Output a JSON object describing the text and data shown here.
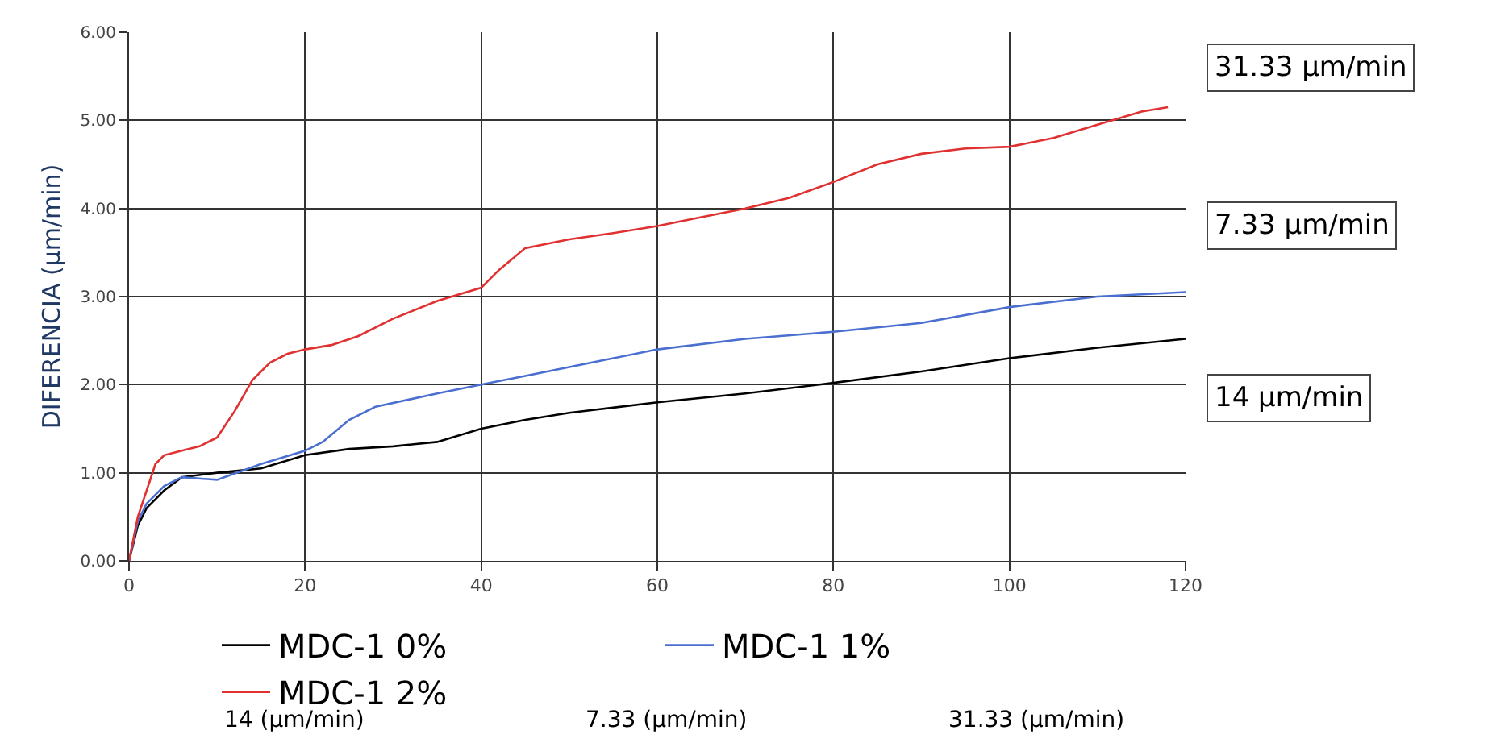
{
  "chart_data": {
    "type": "line",
    "ylabel": "DIFERENCIA (µm/min)",
    "xlim": [
      0,
      120
    ],
    "xticks": [
      0,
      20,
      40,
      60,
      80,
      100,
      120
    ],
    "ylim": [
      0,
      6
    ],
    "yticks": [
      {
        "value": 0,
        "label": "0.00"
      },
      {
        "value": 1,
        "label": "1.00"
      },
      {
        "value": 2,
        "label": "2.00"
      },
      {
        "value": 3,
        "label": "3.00"
      },
      {
        "value": 4,
        "label": "4.00"
      },
      {
        "value": 5,
        "label": "5.00"
      },
      {
        "value": 6,
        "label": "6.00"
      }
    ],
    "grid": true,
    "legend": "bottom",
    "marker": "none",
    "line_style": "solid",
    "annotations": [
      "31.33 µm/min",
      "7.33 µm/min",
      "14 µm/min",
      "14 (µm/min)",
      "7.33 (µm/min)",
      "31.33 (µm/min)"
    ],
    "series": [
      {
        "name": "MDC-1 0%",
        "color": "#000000",
        "x": [
          0,
          1,
          2,
          4,
          6,
          10,
          15,
          20,
          25,
          30,
          35,
          40,
          45,
          50,
          60,
          70,
          80,
          90,
          100,
          110,
          120
        ],
        "values": [
          0,
          0.4,
          0.6,
          0.8,
          0.95,
          1.0,
          1.05,
          1.2,
          1.27,
          1.3,
          1.35,
          1.5,
          1.6,
          1.68,
          1.8,
          1.9,
          2.02,
          2.15,
          2.3,
          2.42,
          2.52
        ]
      },
      {
        "name": "MDC-1 1%",
        "color": "#4a6fd0",
        "x": [
          0,
          1,
          2,
          4,
          6,
          10,
          15,
          20,
          22,
          25,
          28,
          35,
          40,
          45,
          50,
          55,
          60,
          70,
          80,
          90,
          100,
          110,
          120
        ],
        "values": [
          0,
          0.45,
          0.65,
          0.85,
          0.95,
          0.92,
          1.1,
          1.25,
          1.35,
          1.6,
          1.75,
          1.9,
          2.0,
          2.1,
          2.2,
          2.3,
          2.4,
          2.52,
          2.6,
          2.7,
          2.88,
          3.0,
          3.05
        ]
      },
      {
        "name": "MDC-1 2%",
        "color": "#e03030",
        "x": [
          0,
          1,
          2,
          3,
          4,
          6,
          8,
          10,
          12,
          14,
          16,
          18,
          20,
          23,
          26,
          30,
          35,
          40,
          42,
          45,
          50,
          55,
          60,
          65,
          70,
          75,
          80,
          85,
          90,
          95,
          100,
          105,
          110,
          115,
          118
        ],
        "values": [
          0,
          0.5,
          0.8,
          1.1,
          1.2,
          1.25,
          1.3,
          1.4,
          1.7,
          2.05,
          2.25,
          2.35,
          2.4,
          2.45,
          2.55,
          2.75,
          2.95,
          3.1,
          3.3,
          3.55,
          3.65,
          3.72,
          3.8,
          3.9,
          4.0,
          4.12,
          4.3,
          4.5,
          4.62,
          4.68,
          4.7,
          4.8,
          4.95,
          5.1,
          5.15
        ]
      }
    ]
  }
}
